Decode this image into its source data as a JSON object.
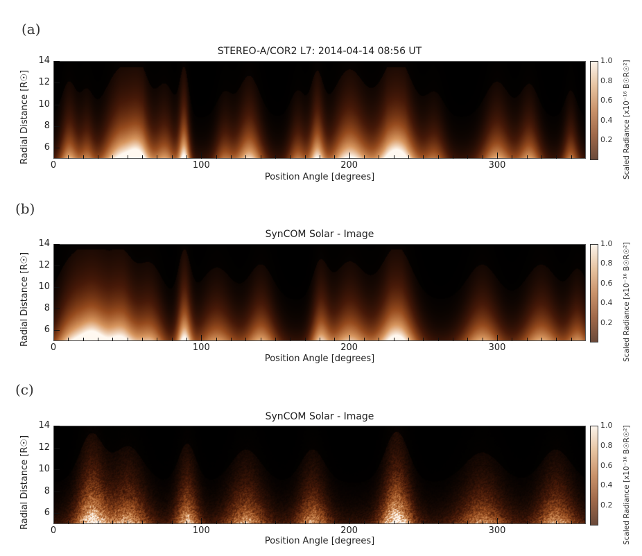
{
  "figure": {
    "panels": [
      {
        "letter": "(a)",
        "title": "STEREO-A/COR2 L7: 2014-04-14 08:56 UT",
        "style": "smooth"
      },
      {
        "letter": "(b)",
        "title": "SynCOM Solar - Image",
        "style": "smooth-model"
      },
      {
        "letter": "(c)",
        "title": "SynCOM Solar - Image",
        "style": "noisy"
      }
    ],
    "xlabel": "Position Angle [degrees]",
    "ylabel": "Radial Distance [R☉]",
    "xticks": [
      "0",
      "100",
      "200",
      "300"
    ],
    "yticks": [
      "14",
      "12",
      "10",
      "8",
      "6"
    ],
    "colorbar": {
      "label": "Scaled Radiance [x10⁻¹⁶ B☉R☉²]",
      "ticks": [
        "1.0",
        "0.8",
        "0.6",
        "0.4",
        "0.2"
      ],
      "colors": [
        "#6b4a3a",
        "#a0694a",
        "#c9926a",
        "#e6c3a0",
        "#fbf3ea"
      ]
    }
  },
  "chart_data": [
    {
      "type": "heatmap",
      "title": "STEREO-A/COR2 L7: 2014-04-14 08:56 UT",
      "xlabel": "Position Angle [degrees]",
      "ylabel": "Radial Distance [R_sun]",
      "xlim": [
        0,
        360
      ],
      "ylim": [
        5,
        14
      ],
      "xticks": [
        0,
        100,
        200,
        300
      ],
      "yticks": [
        6,
        8,
        10,
        12,
        14
      ],
      "colorbar": {
        "label": "Scaled Radiance [x10^-16 B_sun R_sun^2]",
        "range": [
          0,
          1.0
        ],
        "ticks": [
          0.2,
          0.4,
          0.6,
          0.8,
          1.0
        ]
      },
      "bright_streamers_deg": [
        10,
        45,
        60,
        85,
        130,
        175,
        200,
        230,
        300,
        320,
        350
      ],
      "brightest_regions_deg": [
        50,
        88,
        230
      ]
    },
    {
      "type": "heatmap",
      "title": "SynCOM Solar - Image",
      "xlabel": "Position Angle [degrees]",
      "ylabel": "Radial Distance [R_sun]",
      "xlim": [
        0,
        360
      ],
      "ylim": [
        5,
        14
      ],
      "xticks": [
        0,
        100,
        200,
        300
      ],
      "yticks": [
        6,
        8,
        10,
        12,
        14
      ],
      "colorbar": {
        "label": "Scaled Radiance [x10^-16 B_sun R_sun^2]",
        "range": [
          0,
          1.0
        ],
        "ticks": [
          0.2,
          0.4,
          0.6,
          0.8,
          1.0
        ]
      },
      "brightest_regions_deg": [
        25,
        45,
        88,
        230
      ]
    },
    {
      "type": "heatmap",
      "title": "SynCOM Solar - Image",
      "xlabel": "Position Angle [degrees]",
      "ylabel": "Radial Distance [R_sun]",
      "xlim": [
        0,
        360
      ],
      "ylim": [
        5,
        14
      ],
      "xticks": [
        0,
        100,
        200,
        300
      ],
      "yticks": [
        6,
        8,
        10,
        12,
        14
      ],
      "colorbar": {
        "label": "Scaled Radiance [x10^-16 B_sun R_sun^2]",
        "range": [
          0,
          1.0
        ],
        "ticks": [
          0.2,
          0.4,
          0.6,
          0.8,
          1.0
        ]
      },
      "brightest_regions_deg": [
        25,
        230
      ]
    }
  ]
}
